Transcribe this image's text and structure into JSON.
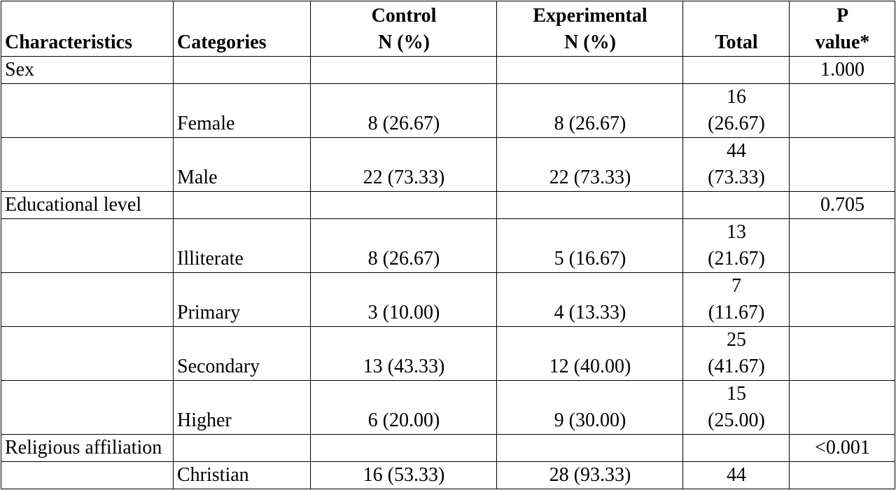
{
  "table": {
    "headers": [
      "Characteristics",
      "Categories",
      "Control\nN (%)",
      "Experimental\nN (%)",
      "Total",
      "P\nvalue*"
    ],
    "header_lines": {
      "characteristics": "Characteristics",
      "categories": "Categories",
      "control_1": "Control",
      "control_2": "N (%)",
      "experimental_1": "Experimental",
      "experimental_2": "N (%)",
      "total": "Total",
      "p_1": "P",
      "p_2": "value*"
    },
    "groups": [
      {
        "characteristic": "Sex",
        "p_value": "1.000",
        "rows": [
          {
            "category": "Female",
            "control": "8 (26.67)",
            "experimental": "8 (26.67)",
            "total_1": "16",
            "total_2": "(26.67)"
          },
          {
            "category": "Male",
            "control": "22 (73.33)",
            "experimental": "22 (73.33)",
            "total_1": "44",
            "total_2": "(73.33)"
          }
        ]
      },
      {
        "characteristic": "Educational level",
        "p_value": "0.705",
        "rows": [
          {
            "category": "Illiterate",
            "control": "8 (26.67)",
            "experimental": "5 (16.67)",
            "total_1": "13",
            "total_2": "(21.67)"
          },
          {
            "category": "Primary",
            "control": "3 (10.00)",
            "experimental": "4 (13.33)",
            "total_1": "7",
            "total_2": "(11.67)"
          },
          {
            "category": "Secondary",
            "control": "13 (43.33)",
            "experimental": "12 (40.00)",
            "total_1": "25",
            "total_2": "(41.67)"
          },
          {
            "category": "Higher",
            "control": "6 (20.00)",
            "experimental": "9 (30.00)",
            "total_1": "15",
            "total_2": "(25.00)"
          }
        ]
      },
      {
        "characteristic": "Religious affiliation",
        "p_value": "<0.001",
        "rows": [
          {
            "category": "Christian",
            "control": "16 (53.33)",
            "experimental": "28 (93.33)",
            "total_1": "44",
            "total_2": ""
          }
        ]
      }
    ]
  }
}
